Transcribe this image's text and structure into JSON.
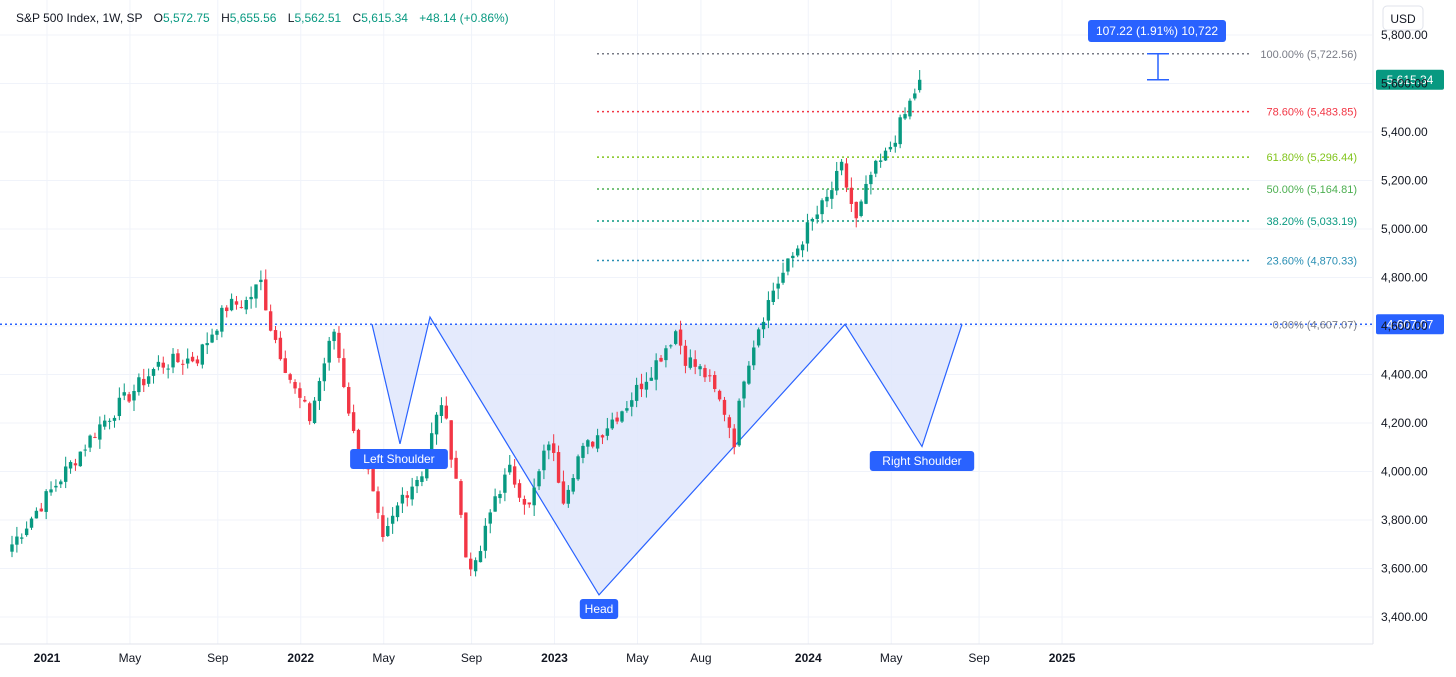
{
  "header": {
    "title": "S&P 500 Index, 1W, SP",
    "open_label": "O",
    "open": "5,572.75",
    "high_label": "H",
    "high": "5,655.56",
    "low_label": "L",
    "low": "5,562.51",
    "close_label": "C",
    "close": "5,615.34",
    "change": "+48.14 (+0.86%)"
  },
  "currency_button": "USD",
  "colors": {
    "up": "#089981",
    "down": "#f23645",
    "pattern_line": "#2962ff",
    "pattern_fill": "#dfe6fc",
    "label_bg": "#2962ff",
    "last_price_bg": "#089981",
    "neckline_bg": "#2962ff"
  },
  "last_price_label": "5,615.34",
  "neckline_price_label": "4,607.07",
  "measure_callout": "107.22 (1.91%) 10,722",
  "fib_levels": [
    {
      "label": "100.00% (5,722.56)",
      "value": 5722.56,
      "color": "#787b86"
    },
    {
      "label": "78.60% (5,483.85)",
      "value": 5483.85,
      "color": "#f23645"
    },
    {
      "label": "61.80% (5,296.44)",
      "value": 5296.44,
      "color": "#81c41c"
    },
    {
      "label": "50.00% (5,164.81)",
      "value": 5164.81,
      "color": "#4caf50"
    },
    {
      "label": "38.20% (5,033.19)",
      "value": 5033.19,
      "color": "#089981"
    },
    {
      "label": "23.60% (4,870.33)",
      "value": 4870.33,
      "color": "#2a8fb4"
    },
    {
      "label": "0.00% (4,607.07)",
      "value": 4607.07,
      "color": "#787b86"
    }
  ],
  "pattern_labels": {
    "left_shoulder": "Left Shoulder",
    "head": "Head",
    "right_shoulder": "Right Shoulder"
  },
  "chart_data": {
    "type": "candlestick",
    "title": "S&P 500 Index, 1W, SP",
    "x_ticks": [
      {
        "label": "2021",
        "bold": true
      },
      {
        "label": "May",
        "bold": false
      },
      {
        "label": "Sep",
        "bold": false
      },
      {
        "label": "2022",
        "bold": true
      },
      {
        "label": "May",
        "bold": false
      },
      {
        "label": "Sep",
        "bold": false
      },
      {
        "label": "2023",
        "bold": true
      },
      {
        "label": "May",
        "bold": false
      },
      {
        "label": "Aug",
        "bold": false
      },
      {
        "label": "2024",
        "bold": true
      },
      {
        "label": "May",
        "bold": false
      },
      {
        "label": "Sep",
        "bold": false
      },
      {
        "label": "2025",
        "bold": true
      }
    ],
    "y_ticks": [
      "3,400.00",
      "3,600.00",
      "3,800.00",
      "4,000.00",
      "4,200.00",
      "4,400.00",
      "4,600.00",
      "4,800.00",
      "5,000.00",
      "5,200.00",
      "5,400.00",
      "5,600.00",
      "5,800.00"
    ],
    "ylim": [
      3320,
      5900
    ],
    "neckline": 4607.07,
    "head_and_shoulders": {
      "left_shoulder_low": 4114,
      "head_low": 3491,
      "right_shoulder_low": 4103,
      "left_peak": 4637,
      "right_peak": 4607
    },
    "measurement": {
      "from": 5615.34,
      "to": 5722.56,
      "change": 107.22,
      "percent": 1.91
    },
    "anchor_points": [
      {
        "week": 0,
        "close": 3700
      },
      {
        "week": 8,
        "close": 3920
      },
      {
        "week": 18,
        "close": 4190
      },
      {
        "week": 30,
        "close": 4440
      },
      {
        "week": 38,
        "close": 4470
      },
      {
        "week": 44,
        "close": 4680
      },
      {
        "week": 48,
        "close": 4700
      },
      {
        "week": 51,
        "close": 4780
      },
      {
        "week": 53,
        "close": 4600
      },
      {
        "week": 58,
        "close": 4330
      },
      {
        "week": 61,
        "close": 4220
      },
      {
        "week": 64,
        "close": 4450
      },
      {
        "week": 66,
        "close": 4580
      },
      {
        "week": 70,
        "close": 4150
      },
      {
        "week": 73,
        "close": 3990
      },
      {
        "week": 76,
        "close": 3700
      },
      {
        "week": 80,
        "close": 3900
      },
      {
        "week": 84,
        "close": 4000
      },
      {
        "week": 88,
        "close": 4290
      },
      {
        "week": 91,
        "close": 3980
      },
      {
        "week": 93,
        "close": 3650
      },
      {
        "week": 95,
        "close": 3600
      },
      {
        "week": 99,
        "close": 3900
      },
      {
        "week": 102,
        "close": 4000
      },
      {
        "week": 106,
        "close": 3850
      },
      {
        "week": 110,
        "close": 4130
      },
      {
        "week": 113,
        "close": 3900
      },
      {
        "week": 116,
        "close": 4060
      },
      {
        "week": 120,
        "close": 4150
      },
      {
        "week": 126,
        "close": 4280
      },
      {
        "week": 132,
        "close": 4450
      },
      {
        "week": 136,
        "close": 4580
      },
      {
        "week": 138,
        "close": 4470
      },
      {
        "week": 142,
        "close": 4400
      },
      {
        "week": 146,
        "close": 4250
      },
      {
        "week": 148,
        "close": 4130
      },
      {
        "week": 150,
        "close": 4400
      },
      {
        "week": 153,
        "close": 4600
      },
      {
        "week": 156,
        "close": 4750
      },
      {
        "week": 159,
        "close": 4850
      },
      {
        "week": 163,
        "close": 5000
      },
      {
        "week": 167,
        "close": 5120
      },
      {
        "week": 170,
        "close": 5250
      },
      {
        "week": 173,
        "close": 5030
      },
      {
        "week": 176,
        "close": 5220
      },
      {
        "week": 179,
        "close": 5300
      },
      {
        "week": 183,
        "close": 5470
      },
      {
        "week": 186,
        "close": 5615
      }
    ]
  }
}
